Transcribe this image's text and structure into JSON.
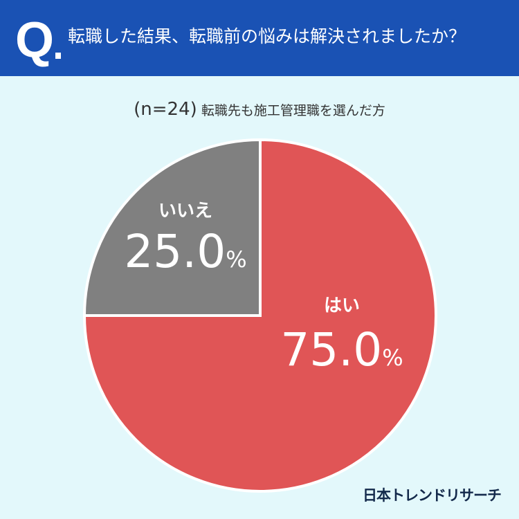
{
  "header": {
    "q_mark": "Q",
    "title": "転職した結果、転職前の悩みは解決されましたか？"
  },
  "subtitle": {
    "n": "(n=24)",
    "text": "転職先も施工管理職を選んだ方"
  },
  "chart_data": {
    "type": "pie",
    "title": "転職した結果、転職前の悩みは解決されましたか？",
    "subtitle": "(n=24) 転職先も施工管理職を選んだ方",
    "start": "12 o'clock",
    "slices": [
      {
        "label": "はい",
        "value": 75.0,
        "display": "75.0",
        "unit": "%",
        "color": "#e05556"
      },
      {
        "label": "いいえ",
        "value": 25.0,
        "display": "25.0",
        "unit": "%",
        "color": "#808080"
      }
    ]
  },
  "logo": "日本トレンドリサーチ",
  "colors": {
    "header": "#1a52b4",
    "background": "#e3f8fb"
  }
}
